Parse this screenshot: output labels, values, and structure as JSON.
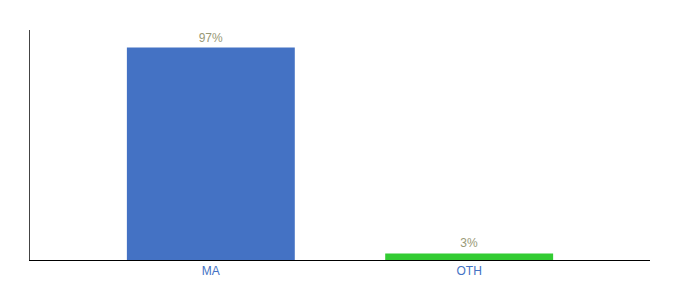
{
  "chart_data": {
    "type": "bar",
    "categories": [
      "MA",
      "OTH"
    ],
    "values": [
      97,
      3
    ],
    "value_labels": [
      "97%",
      "3%"
    ],
    "colors": [
      "#4472c4",
      "#33cc33"
    ],
    "ylim": [
      0,
      105
    ],
    "data_labels": true,
    "tick_labels": "x",
    "grid": false
  }
}
